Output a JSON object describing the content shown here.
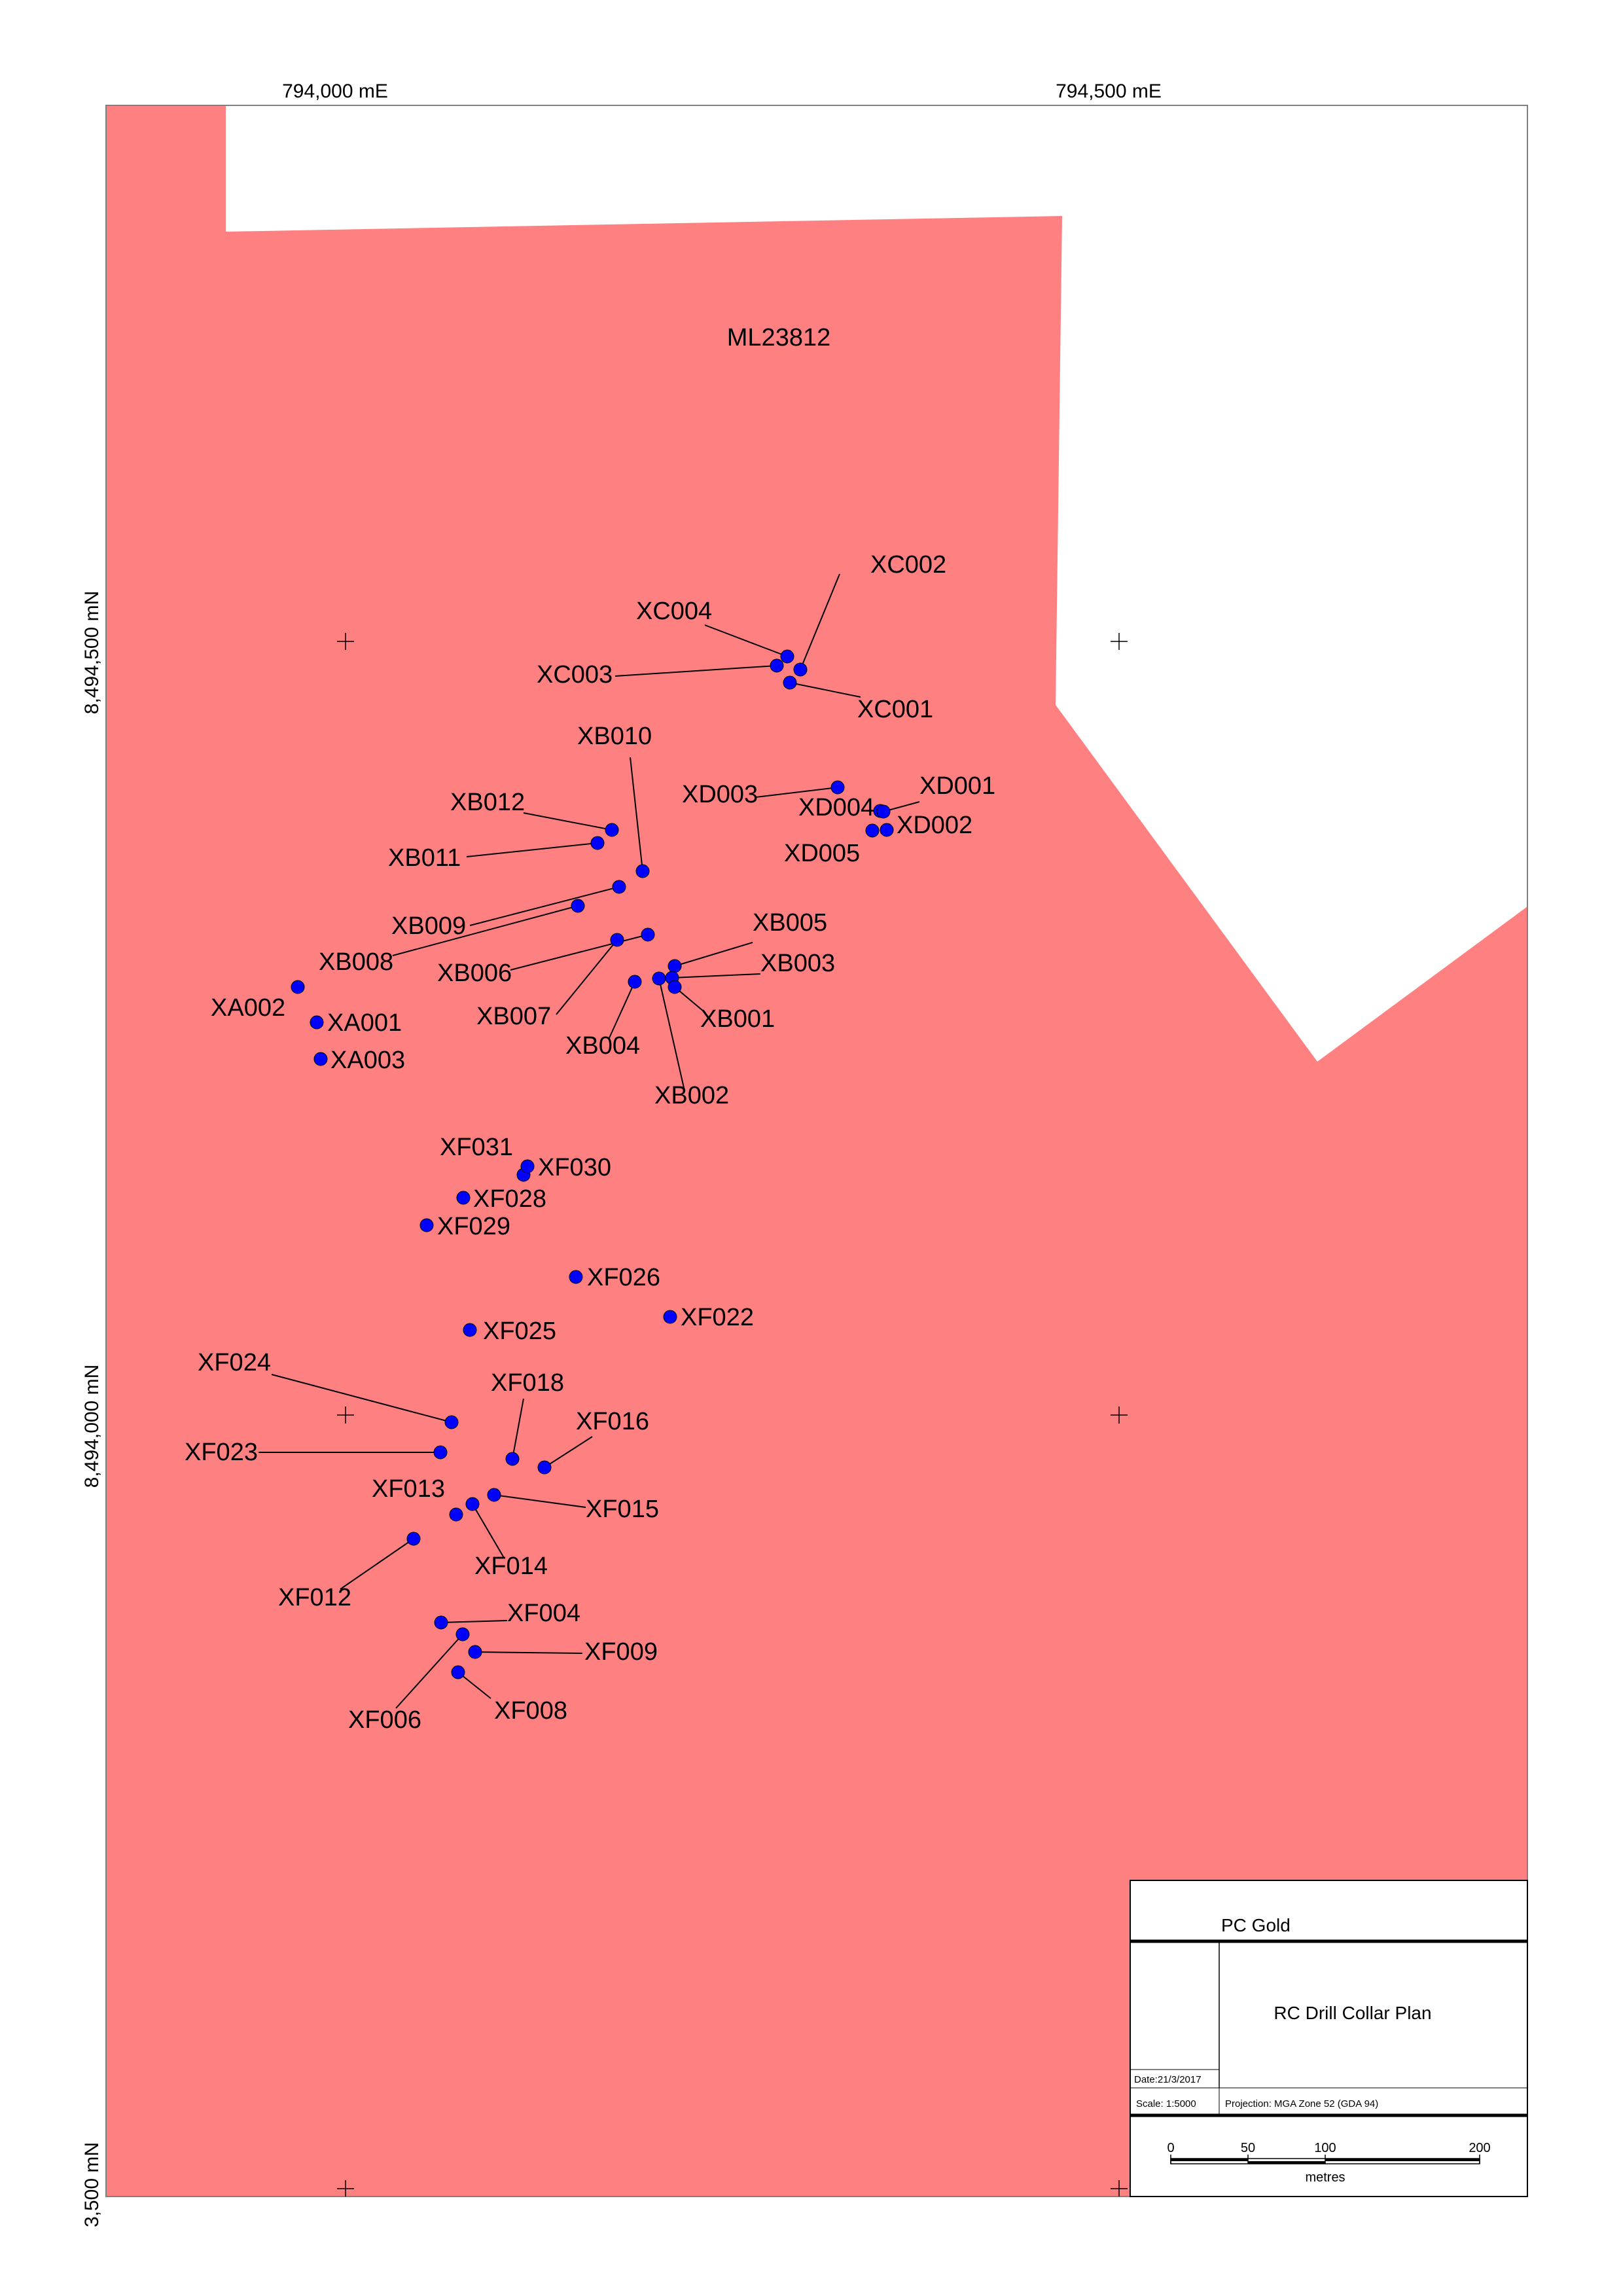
{
  "grid_labels": {
    "easting_1": "794,000 mE",
    "easting_2": "794,500 mE",
    "northing_1": "8,494,500 mN",
    "northing_2": "8,494,000 mN",
    "northing_3": "3,500 mN"
  },
  "tenement": {
    "label": "ML23812",
    "color": "#ff8080"
  },
  "collar_color": "#0000ff",
  "collars": [
    "XC002",
    "XC004",
    "XC003",
    "XC001",
    "XB010",
    "XB012",
    "XB011",
    "XB009",
    "XB008",
    "XB006",
    "XB007",
    "XB005",
    "XB003",
    "XB001",
    "XB004",
    "XB002",
    "XD003",
    "XD004",
    "XD001",
    "XD002",
    "XD005",
    "XA002",
    "XA001",
    "XA003",
    "XF031",
    "XF030",
    "XF028",
    "XF029",
    "XF026",
    "XF022",
    "XF025",
    "XF024",
    "XF018",
    "XF016",
    "XF023",
    "XF013",
    "XF015",
    "XF014",
    "XF012",
    "XF004",
    "XF009",
    "XF006",
    "XF008"
  ],
  "title_block": {
    "company": "PC Gold",
    "title": "RC Drill Collar Plan",
    "date": "Date:21/3/2017",
    "scale": "Scale: 1:5000",
    "projection": "Projection: MGA Zone 52 (GDA 94)",
    "scalebar_ticks": [
      "0",
      "50",
      "100",
      "200"
    ],
    "scalebar_unit": "metres"
  }
}
